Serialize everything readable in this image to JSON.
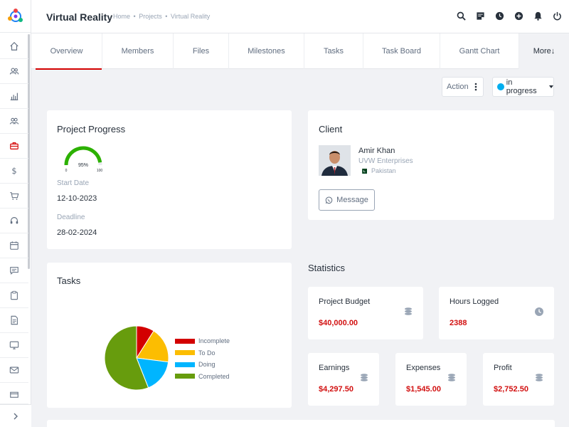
{
  "header": {
    "title": "Virtual Reality",
    "breadcrumb": [
      "Home",
      "Projects",
      "Virtual Reality"
    ],
    "breadcrumb_sep": "•",
    "icons": [
      "search-icon",
      "sticky-note-icon",
      "clock-icon",
      "plus-circle-icon",
      "bell-icon",
      "power-icon"
    ]
  },
  "sidebar": {
    "items": [
      "home-icon",
      "users-icon",
      "bar-chart-icon",
      "team-icon",
      "briefcase-icon",
      "dollar-icon",
      "cart-icon",
      "headset-icon",
      "calendar-icon",
      "chat-icon",
      "clipboard-icon",
      "document-icon",
      "monitor-icon",
      "mail-icon",
      "window-icon"
    ],
    "active_index": 4,
    "toggle_icon": "chevron-right-icon"
  },
  "tabs": [
    {
      "label": "Overview",
      "active": true
    },
    {
      "label": "Members"
    },
    {
      "label": "Files"
    },
    {
      "label": "Milestones"
    },
    {
      "label": "Tasks"
    },
    {
      "label": "Task Board"
    },
    {
      "label": "Gantt Chart"
    },
    {
      "label": "More↓"
    }
  ],
  "actions": {
    "action_label": "Action",
    "status_label": "in progress",
    "status_color": "#00aeef"
  },
  "progress_card": {
    "title": "Project Progress",
    "percent": 95,
    "gauge_min": "0",
    "gauge_max": "100",
    "gauge_label": "95%",
    "start_label": "Start Date",
    "start_value": "12-10-2023",
    "deadline_label": "Deadline",
    "deadline_value": "28-02-2024"
  },
  "client_card": {
    "title": "Client",
    "name": "Amir Khan",
    "company": "UVW Enterprises",
    "country": "Pakistan",
    "message_label": "Message"
  },
  "tasks_card": {
    "title": "Tasks"
  },
  "chart_data": {
    "type": "pie",
    "categories": [
      "Incomplete",
      "To Do",
      "Doing",
      "Completed"
    ],
    "values": [
      9,
      18,
      17,
      56
    ],
    "colors": [
      "#d30000",
      "#fcbd01",
      "#00b5ff",
      "#679c0d"
    ],
    "legend_position": "right"
  },
  "statistics": {
    "title": "Statistics",
    "budget_label": "Project Budget",
    "budget_value": "$40,000.00",
    "hours_label": "Hours Logged",
    "hours_value": "2388",
    "earnings_label": "Earnings",
    "earnings_value": "$4,297.50",
    "expenses_label": "Expenses",
    "expenses_value": "$1,545.00",
    "profit_label": "Profit",
    "profit_value": "$2,752.50"
  },
  "colors": {
    "accent": "#d30000",
    "value_red": "#d21010",
    "background": "#f1f2f5"
  }
}
